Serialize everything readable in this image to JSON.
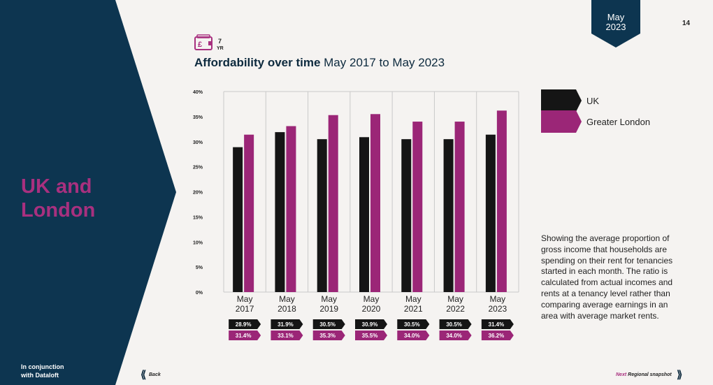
{
  "sidebar": {
    "title_line1": "UK and",
    "title_line2": "London",
    "partner_line1": "In conjunction",
    "partner_line2": "with Dataloft"
  },
  "header": {
    "date_month": "May",
    "date_year": "2023",
    "page_number": "14",
    "icon": "pound-wallet-icon",
    "period_number": "7",
    "period_unit": "YR"
  },
  "chart_title": {
    "bold": "Affordability over time",
    "rest": " May 2017 to May 2023"
  },
  "legend": [
    {
      "label": "UK",
      "color": "#151515"
    },
    {
      "label": "Greater London",
      "color": "#9b2677"
    }
  ],
  "description": "Showing the average proportion of gross income that households are spending on their rent for tenancies started in each month. The ratio is calculated from actual incomes and rents at a tenancy level rather than comparing average earnings in an area with average market rents.",
  "nav": {
    "back_label": "Back",
    "next_label": "Next",
    "next_target": " Regional snapshot"
  },
  "colors": {
    "navy": "#0d3550",
    "magenta": "#a8307f",
    "uk_bar": "#151515",
    "london_bar": "#9b2677"
  },
  "chart_data": {
    "type": "bar",
    "title": "",
    "categories": [
      [
        "May",
        "2017"
      ],
      [
        "May",
        "2018"
      ],
      [
        "May",
        "2019"
      ],
      [
        "May",
        "2020"
      ],
      [
        "May",
        "2021"
      ],
      [
        "May",
        "2022"
      ],
      [
        "May",
        "2023"
      ]
    ],
    "series": [
      {
        "name": "UK",
        "values": [
          28.9,
          31.9,
          30.5,
          30.9,
          30.5,
          30.5,
          31.4
        ],
        "labels": [
          "28.9%",
          "31.9%",
          "30.5%",
          "30.9%",
          "30.5%",
          "30.5%",
          "31.4%"
        ]
      },
      {
        "name": "Greater London",
        "values": [
          31.4,
          33.1,
          35.3,
          35.5,
          34.0,
          34.0,
          36.2
        ],
        "labels": [
          "31.4%",
          "33.1%",
          "35.3%",
          "35.5%",
          "34.0%",
          "34.0%",
          "36.2%"
        ]
      }
    ],
    "y_ticks": [
      "0%",
      "5%",
      "10%",
      "15%",
      "20%",
      "25%",
      "30%",
      "35%",
      "40%"
    ],
    "ylim": [
      0,
      40
    ],
    "xlabel": "",
    "ylabel": "",
    "grid": "vertical separators",
    "legend_position": "right"
  }
}
